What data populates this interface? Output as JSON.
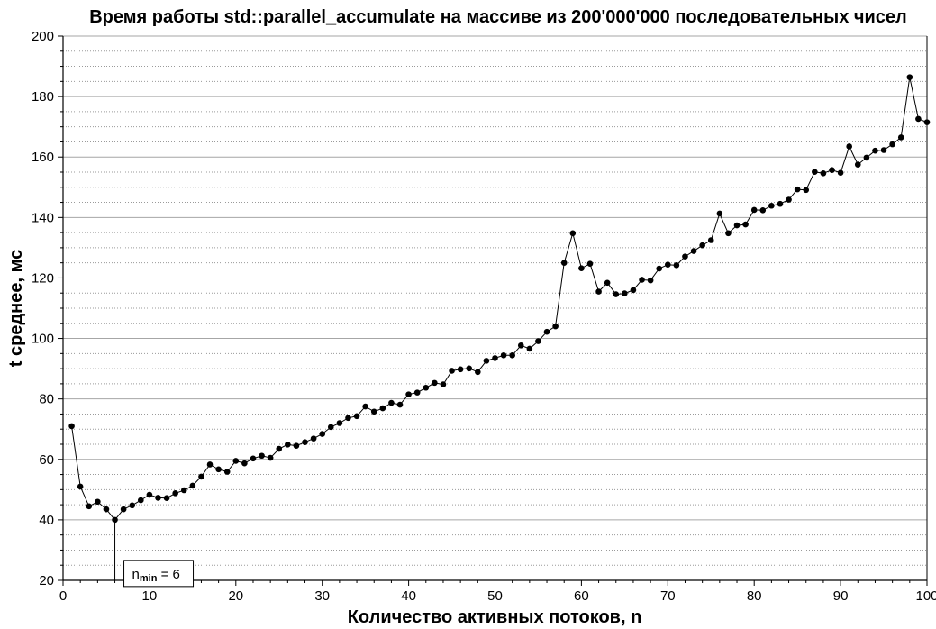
{
  "chart_data": {
    "type": "line",
    "title": "Время работы std::parallel_accumulate на массиве из 200'000'000 последовательных чисел",
    "xlabel": "Количество активных потоков, n",
    "ylabel": "t среднее, мс",
    "xlim": [
      0,
      100
    ],
    "ylim": [
      20,
      200
    ],
    "x_ticks": [
      0,
      10,
      20,
      30,
      40,
      50,
      60,
      70,
      80,
      90,
      100
    ],
    "y_ticks": [
      20,
      40,
      60,
      80,
      100,
      120,
      140,
      160,
      180,
      200
    ],
    "grid": "horizontal",
    "line_color": "#000000",
    "marker": "filled-circle",
    "x": [
      1,
      2,
      3,
      4,
      5,
      6,
      7,
      8,
      9,
      10,
      11,
      12,
      13,
      14,
      15,
      16,
      17,
      18,
      19,
      20,
      21,
      22,
      23,
      24,
      25,
      26,
      27,
      28,
      29,
      30,
      31,
      32,
      33,
      34,
      35,
      36,
      37,
      38,
      39,
      40,
      41,
      42,
      43,
      44,
      45,
      46,
      47,
      48,
      49,
      50,
      51,
      52,
      53,
      54,
      55,
      56,
      57,
      58,
      59,
      60,
      61,
      62,
      63,
      64,
      65,
      66,
      67,
      68,
      69,
      70,
      71,
      72,
      73,
      74,
      75,
      76,
      77,
      78,
      79,
      80,
      81,
      82,
      83,
      84,
      85,
      86,
      87,
      88,
      89,
      90,
      91,
      92,
      93,
      94,
      95,
      96,
      97,
      98,
      99,
      100
    ],
    "y": [
      71,
      51,
      44.5,
      46,
      43.5,
      40,
      43.5,
      44.8,
      46.5,
      48.3,
      47.3,
      47.2,
      48.8,
      49.8,
      51.3,
      54.3,
      58.3,
      56.7,
      55.9,
      59.5,
      58.7,
      60.3,
      61.2,
      60.5,
      63.5,
      64.9,
      64.5,
      65.7,
      66.9,
      68.4,
      70.7,
      72,
      73.7,
      74.3,
      77.5,
      75.8,
      76.9,
      78.7,
      78.1,
      81.5,
      82.1,
      83.7,
      85.3,
      84.8,
      89.3,
      89.8,
      90.1,
      88.9,
      92.6,
      93.5,
      94.4,
      94.4,
      97.7,
      96.6,
      99.1,
      102.2,
      104,
      125,
      134.8,
      123.2,
      124.7,
      115.5,
      118.4,
      114.6,
      114.9,
      116,
      119.4,
      119.2,
      123.1,
      124.4,
      124.2,
      127.1,
      128.9,
      130.8,
      132.5,
      141.3,
      134.8,
      137.4,
      137.7,
      142.5,
      142.4,
      143.9,
      144.5,
      145.9,
      149.3,
      149.1,
      155.1,
      154.6,
      155.7,
      154.8,
      163.5,
      157.5,
      159.8,
      162.1,
      162.3,
      164.2,
      166.5,
      186.4,
      172.6,
      171.5
    ],
    "annotation": {
      "label_main": "n",
      "label_sub": "min",
      "label_rest": " = 6",
      "x": 6,
      "y": 40
    }
  }
}
